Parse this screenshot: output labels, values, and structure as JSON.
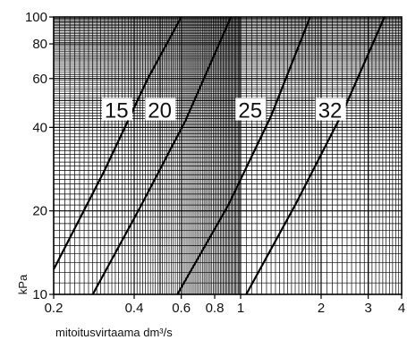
{
  "chart_data": {
    "type": "line",
    "xlabel": "mitoitusvirtaama dm³/s",
    "ylabel": "kPa",
    "x_scale": "log",
    "y_scale": "log",
    "xlim": [
      0.2,
      4
    ],
    "ylim": [
      10,
      100
    ],
    "grid": true,
    "x_ticks": [
      {
        "value": 0.2,
        "label": "0.2"
      },
      {
        "value": 0.4,
        "label": "0.4"
      },
      {
        "value": 0.6,
        "label": "0.6"
      },
      {
        "value": 0.8,
        "label": "0.8"
      },
      {
        "value": 1,
        "label": "1"
      },
      {
        "value": 2,
        "label": "2"
      },
      {
        "value": 3,
        "label": "3"
      },
      {
        "value": 4,
        "label": "4"
      }
    ],
    "y_ticks": [
      {
        "value": 10,
        "label": "10"
      },
      {
        "value": 20,
        "label": "20"
      },
      {
        "value": 40,
        "label": "40"
      },
      {
        "value": 60,
        "label": "60"
      },
      {
        "value": 80,
        "label": "80"
      },
      {
        "value": 100,
        "label": "100"
      }
    ],
    "series": [
      {
        "name": "15",
        "points": [
          [
            0.2,
            12.3
          ],
          [
            0.31,
            28.0
          ],
          [
            0.45,
            60.0
          ],
          [
            0.6,
            100.0
          ]
        ]
      },
      {
        "name": "20",
        "points": [
          [
            0.28,
            10.0
          ],
          [
            0.42,
            20.5
          ],
          [
            0.62,
            42.0
          ],
          [
            0.92,
            100.0
          ]
        ]
      },
      {
        "name": "25",
        "points": [
          [
            0.58,
            10.0
          ],
          [
            0.9,
            21.0
          ],
          [
            1.3,
            44.0
          ],
          [
            1.82,
            100.0
          ]
        ]
      },
      {
        "name": "32",
        "points": [
          [
            1.05,
            10.0
          ],
          [
            1.6,
            21.0
          ],
          [
            2.4,
            45.0
          ],
          [
            3.45,
            100.0
          ]
        ]
      }
    ],
    "curve_labels": [
      {
        "series": "15",
        "text": "15",
        "x": 0.31,
        "y": 44
      },
      {
        "series": "20",
        "text": "20",
        "x": 0.45,
        "y": 44
      },
      {
        "series": "25",
        "text": "25",
        "x": 0.98,
        "y": 44
      },
      {
        "series": "32",
        "text": "32",
        "x": 1.95,
        "y": 44
      }
    ]
  }
}
